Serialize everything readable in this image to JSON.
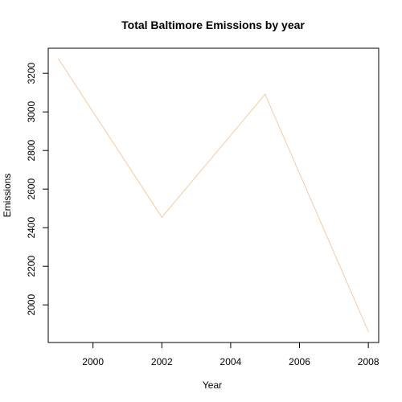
{
  "chart_data": {
    "type": "line",
    "title": "Total Baltimore Emissions by year",
    "xlabel": "Year",
    "ylabel": "Emissions",
    "x": [
      1999,
      2002,
      2005,
      2008
    ],
    "series": [
      {
        "name": "Emissions",
        "values": [
          3274,
          2454,
          3091,
          1862
        ],
        "color": "#f5c9a0"
      }
    ],
    "xlim": [
      1998.7,
      2008.3
    ],
    "ylim": [
      1805,
      3330
    ],
    "xticks": [
      2000,
      2002,
      2004,
      2006,
      2008
    ],
    "yticks": [
      2000,
      2200,
      2400,
      2600,
      2800,
      3000,
      3200
    ],
    "grid": false
  }
}
